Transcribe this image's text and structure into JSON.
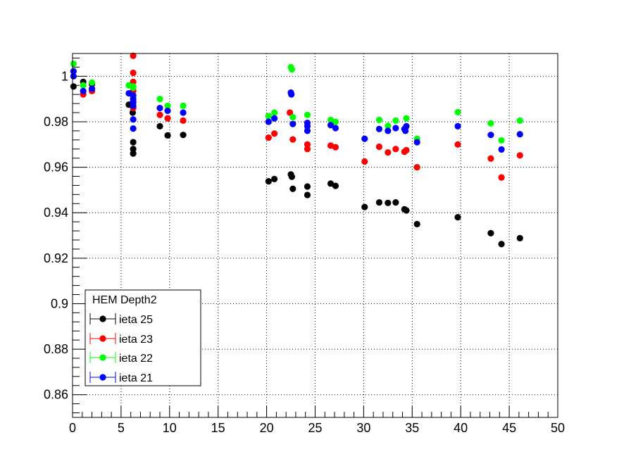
{
  "chart_data": {
    "type": "scatter",
    "title": "",
    "xlabel": "",
    "ylabel": "",
    "xlim": [
      0,
      50
    ],
    "ylim": [
      0.85,
      1.01
    ],
    "x_ticks": [
      "0",
      "5",
      "10",
      "15",
      "20",
      "25",
      "30",
      "35",
      "40",
      "45",
      "50"
    ],
    "y_ticks": [
      "0.86",
      "0.88",
      "0.9",
      "0.92",
      "0.94",
      "0.96",
      "0.98",
      "1"
    ],
    "grid": true,
    "legend": {
      "header": "HEM Depth2",
      "placement": "bottom-left",
      "entries": [
        "ieta 25",
        "ieta 23",
        "ieta 22",
        "ieta 21"
      ]
    },
    "series": [
      {
        "name": "ieta 25",
        "color": "#000000",
        "points": [
          [
            0.1,
            0.9955
          ],
          [
            1.1,
            0.9975
          ],
          [
            2.0,
            0.9965
          ],
          [
            5.8,
            0.9875
          ],
          [
            6.2,
            0.984
          ],
          [
            6.25,
            0.971
          ],
          [
            6.25,
            0.968
          ],
          [
            6.25,
            0.966
          ],
          [
            9.0,
            0.978
          ],
          [
            9.8,
            0.974
          ],
          [
            11.4,
            0.9742
          ],
          [
            20.2,
            0.9538
          ],
          [
            20.8,
            0.9548
          ],
          [
            22.5,
            0.9568
          ],
          [
            22.6,
            0.9558
          ],
          [
            22.7,
            0.9505
          ],
          [
            24.2,
            0.9515
          ],
          [
            24.2,
            0.9478
          ],
          [
            26.6,
            0.9528
          ],
          [
            27.1,
            0.9518
          ],
          [
            30.1,
            0.9425
          ],
          [
            31.6,
            0.9445
          ],
          [
            32.5,
            0.9443
          ],
          [
            33.3,
            0.9445
          ],
          [
            34.2,
            0.9415
          ],
          [
            34.4,
            0.941
          ],
          [
            35.5,
            0.935
          ],
          [
            39.7,
            0.938
          ],
          [
            43.1,
            0.931
          ],
          [
            44.2,
            0.9262
          ],
          [
            46.1,
            0.9288
          ]
        ]
      },
      {
        "name": "ieta 23",
        "color": "#ff0000",
        "points": [
          [
            1.1,
            0.992
          ],
          [
            2.0,
            0.9935
          ],
          [
            6.25,
            1.009
          ],
          [
            6.25,
            1.0015
          ],
          [
            6.25,
            0.9975
          ],
          [
            6.25,
            0.9935
          ],
          [
            6.25,
            0.989
          ],
          [
            6.25,
            0.986
          ],
          [
            9.0,
            0.983
          ],
          [
            9.8,
            0.9815
          ],
          [
            11.4,
            0.9805
          ],
          [
            20.2,
            0.973
          ],
          [
            20.8,
            0.9748
          ],
          [
            22.4,
            0.984
          ],
          [
            22.7,
            0.9722
          ],
          [
            24.2,
            0.97
          ],
          [
            24.2,
            0.968
          ],
          [
            26.6,
            0.9695
          ],
          [
            27.1,
            0.9688
          ],
          [
            30.1,
            0.9625
          ],
          [
            31.6,
            0.969
          ],
          [
            32.5,
            0.9665
          ],
          [
            33.3,
            0.968
          ],
          [
            34.2,
            0.9668
          ],
          [
            34.4,
            0.9675
          ],
          [
            35.5,
            0.96
          ],
          [
            39.7,
            0.97
          ],
          [
            43.1,
            0.9638
          ],
          [
            44.2,
            0.9555
          ],
          [
            46.1,
            0.9652
          ]
        ]
      },
      {
        "name": "ieta 22",
        "color": "#00ff00",
        "points": [
          [
            0.1,
            1.0055
          ],
          [
            1.1,
            0.996
          ],
          [
            2.0,
            0.9972
          ],
          [
            5.8,
            0.996
          ],
          [
            6.25,
            0.9955
          ],
          [
            6.25,
            0.995
          ],
          [
            9.0,
            0.99
          ],
          [
            9.8,
            0.987
          ],
          [
            11.4,
            0.987
          ],
          [
            20.2,
            0.9825
          ],
          [
            20.8,
            0.984
          ],
          [
            22.5,
            1.004
          ],
          [
            22.6,
            1.003
          ],
          [
            22.7,
            0.982
          ],
          [
            24.2,
            0.983
          ],
          [
            26.6,
            0.9808
          ],
          [
            27.1,
            0.98
          ],
          [
            31.6,
            0.9808
          ],
          [
            32.5,
            0.9782
          ],
          [
            33.3,
            0.9805
          ],
          [
            34.4,
            0.9815
          ],
          [
            35.5,
            0.9725
          ],
          [
            39.7,
            0.9842
          ],
          [
            43.1,
            0.9793
          ],
          [
            44.2,
            0.9718
          ],
          [
            46.1,
            0.9805
          ]
        ]
      },
      {
        "name": "ieta 21",
        "color": "#0000ff",
        "points": [
          [
            0.1,
            1.0022
          ],
          [
            0.1,
            1.0
          ],
          [
            1.1,
            0.9935
          ],
          [
            2.0,
            0.9945
          ],
          [
            5.8,
            0.9925
          ],
          [
            6.25,
            0.9915
          ],
          [
            6.25,
            0.99
          ],
          [
            6.25,
            0.9885
          ],
          [
            6.25,
            0.987
          ],
          [
            6.25,
            0.981
          ],
          [
            6.25,
            0.977
          ],
          [
            9.0,
            0.986
          ],
          [
            9.8,
            0.9848
          ],
          [
            11.4,
            0.984
          ],
          [
            20.2,
            0.98
          ],
          [
            20.8,
            0.9815
          ],
          [
            22.5,
            0.9928
          ],
          [
            22.55,
            0.992
          ],
          [
            22.7,
            0.979
          ],
          [
            24.2,
            0.9795
          ],
          [
            24.2,
            0.978
          ],
          [
            24.2,
            0.976
          ],
          [
            26.6,
            0.9785
          ],
          [
            27.1,
            0.9772
          ],
          [
            30.1,
            0.9725
          ],
          [
            31.6,
            0.9768
          ],
          [
            32.5,
            0.976
          ],
          [
            33.3,
            0.9772
          ],
          [
            34.2,
            0.9768
          ],
          [
            34.3,
            0.976
          ],
          [
            34.4,
            0.978
          ],
          [
            35.5,
            0.971
          ],
          [
            39.7,
            0.978
          ],
          [
            43.1,
            0.9742
          ],
          [
            44.2,
            0.9678
          ],
          [
            46.1,
            0.9745
          ]
        ]
      }
    ]
  }
}
